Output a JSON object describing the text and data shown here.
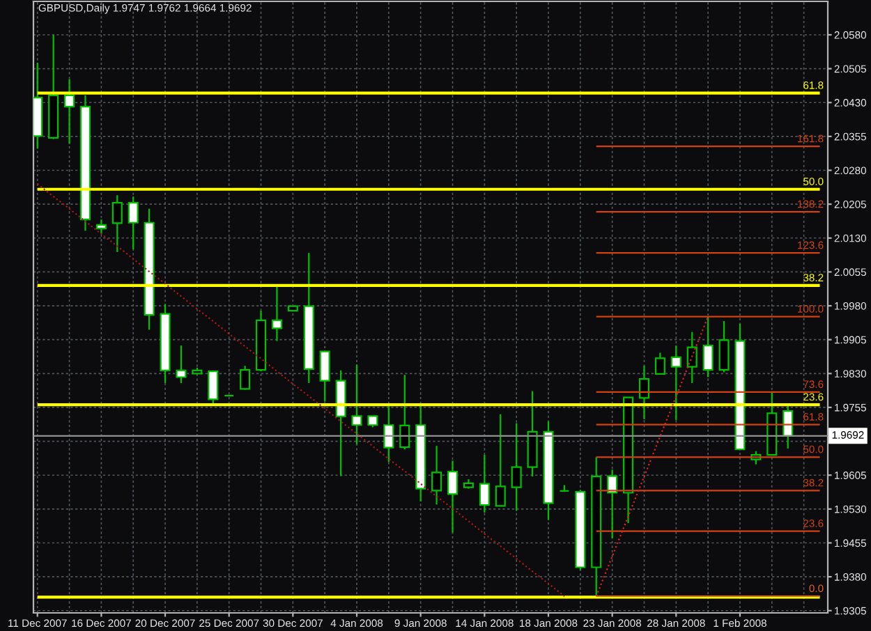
{
  "chart_data": {
    "type": "candlestick",
    "title": "GBPUSD,Daily 1.9747 1.9762 1.9664 1.9692",
    "categories": [
      "11 Dec 2007",
      null,
      null,
      null,
      "16 Dec 2007",
      null,
      null,
      null,
      "20 Dec 2007",
      null,
      null,
      null,
      "25 Dec 2007",
      null,
      null,
      null,
      "30 Dec 2007",
      null,
      null,
      null,
      "4 Jan 2008",
      null,
      null,
      null,
      "9 Jan 2008",
      null,
      null,
      null,
      "14 Jan 2008",
      null,
      null,
      null,
      "18 Jan 2008",
      null,
      null,
      null,
      "23 Jan 2008",
      null,
      null,
      null,
      "28 Jan 2008",
      null,
      null,
      null,
      "1 Feb 2008",
      null,
      null,
      null,
      null,
      null
    ],
    "ohlc": [
      [
        2.0441,
        2.0518,
        2.0328,
        2.0356
      ],
      [
        2.0352,
        2.058,
        2.0349,
        2.0446
      ],
      [
        2.0446,
        2.0482,
        2.0339,
        2.0421
      ],
      [
        2.0421,
        2.0446,
        2.0146,
        2.0171
      ],
      [
        2.0159,
        2.0171,
        2.014,
        2.0151
      ],
      [
        2.0163,
        2.0225,
        2.0099,
        2.0208
      ],
      [
        2.0208,
        2.0222,
        2.0105,
        2.0164
      ],
      [
        2.0164,
        2.0195,
        1.9927,
        1.996
      ],
      [
        1.9962,
        1.9984,
        1.9809,
        1.9837
      ],
      [
        1.9837,
        1.9892,
        1.9809,
        1.9822
      ],
      [
        1.983,
        1.9843,
        1.9828,
        1.9837
      ],
      [
        1.9835,
        1.9837,
        1.9758,
        1.9773
      ],
      [
        1.9781,
        1.9782,
        1.978,
        1.9781
      ],
      [
        1.9796,
        1.9847,
        1.9794,
        1.9838
      ],
      [
        1.9838,
        1.9969,
        1.9835,
        1.9948
      ],
      [
        1.9948,
        2.0022,
        1.9902,
        1.993
      ],
      [
        1.9969,
        1.998,
        1.9968,
        1.9979
      ],
      [
        1.9979,
        2.0097,
        1.9809,
        1.984
      ],
      [
        1.9879,
        1.988,
        1.9768,
        1.9814
      ],
      [
        1.9814,
        1.9837,
        1.9603,
        1.9735
      ],
      [
        1.9736,
        1.985,
        1.9673,
        1.9716
      ],
      [
        1.9736,
        1.9736,
        1.9711,
        1.9716
      ],
      [
        1.9716,
        1.9758,
        1.9634,
        1.9666
      ],
      [
        1.9667,
        1.9827,
        1.9662,
        1.9715
      ],
      [
        1.9716,
        1.9758,
        1.9547,
        1.9575
      ],
      [
        1.9571,
        1.967,
        1.954,
        1.9611
      ],
      [
        1.9613,
        1.9637,
        1.9478,
        1.9563
      ],
      [
        1.9578,
        1.9596,
        1.9575,
        1.9587
      ],
      [
        1.9586,
        1.965,
        1.9522,
        1.9539
      ],
      [
        1.9537,
        1.974,
        1.9537,
        1.958
      ],
      [
        1.9578,
        1.972,
        1.9526,
        1.9623
      ],
      [
        1.9623,
        1.9791,
        1.9602,
        1.9701
      ],
      [
        1.9701,
        1.9724,
        1.9506,
        1.9543
      ],
      [
        1.957,
        1.9583,
        1.9568,
        1.957
      ],
      [
        1.9568,
        1.9572,
        1.9395,
        1.9401
      ],
      [
        1.9401,
        1.9645,
        1.9337,
        1.9602
      ],
      [
        1.9603,
        1.9617,
        1.9465,
        1.9566
      ],
      [
        1.9566,
        1.9777,
        1.9499,
        1.9777
      ],
      [
        1.9776,
        1.9847,
        1.9729,
        1.9818
      ],
      [
        1.9829,
        1.9876,
        1.9829,
        1.9864
      ],
      [
        1.9866,
        1.9892,
        1.9727,
        1.9845
      ],
      [
        1.9845,
        1.9922,
        1.9809,
        1.9888
      ],
      [
        1.9892,
        1.9956,
        1.9822,
        1.9838
      ],
      [
        1.9838,
        1.9946,
        1.9833,
        1.9904
      ],
      [
        1.9902,
        1.994,
        1.9662,
        1.9662
      ],
      [
        1.964,
        1.9658,
        1.9629,
        1.965
      ],
      [
        1.965,
        1.9789,
        1.9649,
        1.9742
      ],
      [
        1.9747,
        1.9762,
        1.9664,
        1.9692
      ],
      null,
      null
    ],
    "color": "#00c000",
    "colors": [
      "#ffffff",
      "#000000",
      "#ffffff",
      "#ffffff",
      "#ffffff",
      "#000000",
      "#ffffff",
      "#ffffff",
      "#ffffff",
      "#ffffff",
      "#000000",
      "#ffffff",
      "#00c000",
      "#000000",
      "#000000",
      "#ffffff",
      "#000000",
      "#ffffff",
      "#ffffff",
      "#ffffff",
      "#ffffff",
      "#ffffff",
      "#ffffff",
      "#000000",
      "#ffffff",
      "#000000",
      "#ffffff",
      "#000000",
      "#ffffff",
      "#000000",
      "#000000",
      "#000000",
      "#ffffff",
      "#00c000",
      "#ffffff",
      "#000000",
      "#ffffff",
      "#000000",
      "#000000",
      "#000000",
      "#ffffff",
      "#000000",
      "#ffffff",
      "#000000",
      "#ffffff",
      "#000000",
      "#000000",
      "#ffffff",
      null,
      null
    ],
    "ylim": [
      1.93,
      2.0654
    ],
    "yticks": [
      {
        "value": 1.9305,
        "label": "1.9305"
      },
      {
        "value": 1.938,
        "label": "1.9380"
      },
      {
        "value": 1.9455,
        "label": "1.9455"
      },
      {
        "value": 1.953,
        "label": "1.9530"
      },
      {
        "value": 1.9605,
        "label": "1.9605"
      },
      {
        "value": 1.968,
        "label": null
      },
      {
        "value": 1.9755,
        "label": "1.9755"
      },
      {
        "value": 1.983,
        "label": "1.9830"
      },
      {
        "value": 1.9905,
        "label": "1.9905"
      },
      {
        "value": 1.998,
        "label": "1.9980"
      },
      {
        "value": 2.0055,
        "label": "2.0055"
      },
      {
        "value": 2.013,
        "label": "2.0130"
      },
      {
        "value": 2.0205,
        "label": "2.0205"
      },
      {
        "value": 2.028,
        "label": "2.0280"
      },
      {
        "value": 2.0355,
        "label": "2.0355"
      },
      {
        "value": 2.043,
        "label": "2.0430"
      },
      {
        "value": 2.0505,
        "label": "2.0505"
      },
      {
        "value": 2.058,
        "label": "2.0580"
      }
    ],
    "grid": true,
    "ref_lines": [
      {
        "axis": "y",
        "value": 1.9692,
        "label": "1.9692",
        "color": "#909090"
      }
    ],
    "series": [
      {
        "type": "line",
        "name": "61.8",
        "color": "#ffff00",
        "values": [
          2.0451,
          2.0451,
          2.0451,
          2.0451,
          2.0451,
          2.0451,
          2.0451,
          2.0451,
          2.0451,
          2.0451,
          2.0451,
          2.0451,
          2.0451,
          2.0451,
          2.0451,
          2.0451,
          2.0451,
          2.0451,
          2.0451,
          2.0451,
          2.0451,
          2.0451,
          2.0451,
          2.0451,
          2.0451,
          2.0451,
          2.0451,
          2.0451,
          2.0451,
          2.0451,
          2.0451,
          2.0451,
          2.0451,
          2.0451,
          2.0451,
          2.0451,
          2.0451,
          2.0451,
          2.0451,
          2.0451,
          2.0451,
          2.0451,
          2.0451,
          2.0451,
          2.0451,
          2.0451,
          2.0451,
          2.0451,
          2.0451,
          2.0451
        ]
      },
      {
        "type": "line",
        "name": "50.0",
        "color": "#ffff00",
        "values": [
          2.0238,
          2.0238,
          2.0238,
          2.0238,
          2.0238,
          2.0238,
          2.0238,
          2.0238,
          2.0238,
          2.0238,
          2.0238,
          2.0238,
          2.0238,
          2.0238,
          2.0238,
          2.0238,
          2.0238,
          2.0238,
          2.0238,
          2.0238,
          2.0238,
          2.0238,
          2.0238,
          2.0238,
          2.0238,
          2.0238,
          2.0238,
          2.0238,
          2.0238,
          2.0238,
          2.0238,
          2.0238,
          2.0238,
          2.0238,
          2.0238,
          2.0238,
          2.0238,
          2.0238,
          2.0238,
          2.0238,
          2.0238,
          2.0238,
          2.0238,
          2.0238,
          2.0238,
          2.0238,
          2.0238,
          2.0238,
          2.0238,
          2.0238
        ]
      },
      {
        "type": "line",
        "name": "38.2",
        "color": "#ffff00",
        "values": [
          2.0025,
          2.0025,
          2.0025,
          2.0025,
          2.0025,
          2.0025,
          2.0025,
          2.0025,
          2.0025,
          2.0025,
          2.0025,
          2.0025,
          2.0025,
          2.0025,
          2.0025,
          2.0025,
          2.0025,
          2.0025,
          2.0025,
          2.0025,
          2.0025,
          2.0025,
          2.0025,
          2.0025,
          2.0025,
          2.0025,
          2.0025,
          2.0025,
          2.0025,
          2.0025,
          2.0025,
          2.0025,
          2.0025,
          2.0025,
          2.0025,
          2.0025,
          2.0025,
          2.0025,
          2.0025,
          2.0025,
          2.0025,
          2.0025,
          2.0025,
          2.0025,
          2.0025,
          2.0025,
          2.0025,
          2.0025,
          2.0025,
          2.0025
        ]
      },
      {
        "type": "line",
        "name": "23.6",
        "color": "#ffff00",
        "values": [
          1.9761,
          1.9761,
          1.9761,
          1.9761,
          1.9761,
          1.9761,
          1.9761,
          1.9761,
          1.9761,
          1.9761,
          1.9761,
          1.9761,
          1.9761,
          1.9761,
          1.9761,
          1.9761,
          1.9761,
          1.9761,
          1.9761,
          1.9761,
          1.9761,
          1.9761,
          1.9761,
          1.9761,
          1.9761,
          1.9761,
          1.9761,
          1.9761,
          1.9761,
          1.9761,
          1.9761,
          1.9761,
          1.9761,
          1.9761,
          1.9761,
          1.9761,
          1.9761,
          1.9761,
          1.9761,
          1.9761,
          1.9761,
          1.9761,
          1.9761,
          1.9761,
          1.9761,
          1.9761,
          1.9761,
          1.9761,
          1.9761,
          1.9761
        ]
      },
      {
        "type": "line",
        "color": "#ffff00",
        "values": [
          1.9335,
          1.9335,
          1.9335,
          1.9335,
          1.9335,
          1.9335,
          1.9335,
          1.9335,
          1.9335,
          1.9335,
          1.9335,
          1.9335,
          1.9335,
          1.9335,
          1.9335,
          1.9335,
          1.9335,
          1.9335,
          1.9335,
          1.9335,
          1.9335,
          1.9335,
          1.9335,
          1.9335,
          1.9335,
          1.9335,
          1.9335,
          1.9335,
          1.9335,
          1.9335,
          1.9335,
          1.9335,
          1.9335,
          1.9335,
          1.9335,
          1.9335,
          1.9335,
          1.9335,
          1.9335,
          1.9335,
          1.9335,
          1.9335,
          1.9335,
          1.9335,
          1.9335,
          1.9335,
          1.9335,
          1.9335,
          1.9335,
          1.9335
        ]
      },
      {
        "type": "line",
        "color": "#a81818",
        "line_style": "dotted",
        "values": [
          2.025,
          2.0222,
          2.0195,
          2.0167,
          2.0139,
          2.0112,
          2.0084,
          2.0056,
          2.0029,
          2.0001,
          1.9973,
          1.9946,
          1.9918,
          1.989,
          1.9863,
          1.9835,
          1.9807,
          1.978,
          1.9752,
          1.9724,
          1.9697,
          1.9669,
          1.9641,
          1.9614,
          1.9586,
          1.9558,
          1.9531,
          1.9503,
          1.9475,
          1.9448,
          1.942,
          1.9392,
          1.9365,
          1.9337,
          null,
          null,
          null,
          null,
          null,
          null,
          null,
          null,
          null,
          null,
          null,
          null,
          null,
          null,
          null,
          null
        ]
      },
      {
        "type": "line",
        "name": "161.8",
        "color": "#d2410f",
        "values": [
          null,
          null,
          null,
          null,
          null,
          null,
          null,
          null,
          null,
          null,
          null,
          null,
          null,
          null,
          null,
          null,
          null,
          null,
          null,
          null,
          null,
          null,
          null,
          null,
          null,
          null,
          null,
          null,
          null,
          null,
          null,
          null,
          null,
          null,
          null,
          2.0333,
          2.0333,
          2.0333,
          2.0333,
          2.0333,
          2.0333,
          2.0333,
          2.0333,
          2.0333,
          2.0333,
          2.0333,
          2.0333,
          2.0333,
          2.0333,
          2.0333
        ]
      },
      {
        "type": "line",
        "name": "138.2",
        "color": "#d2410f",
        "values": [
          null,
          null,
          null,
          null,
          null,
          null,
          null,
          null,
          null,
          null,
          null,
          null,
          null,
          null,
          null,
          null,
          null,
          null,
          null,
          null,
          null,
          null,
          null,
          null,
          null,
          null,
          null,
          null,
          null,
          null,
          null,
          null,
          null,
          null,
          null,
          2.0188,
          2.0188,
          2.0188,
          2.0188,
          2.0188,
          2.0188,
          2.0188,
          2.0188,
          2.0188,
          2.0188,
          2.0188,
          2.0188,
          2.0188,
          2.0188,
          2.0188
        ]
      },
      {
        "type": "line",
        "name": "123.6",
        "color": "#d2410f",
        "values": [
          null,
          null,
          null,
          null,
          null,
          null,
          null,
          null,
          null,
          null,
          null,
          null,
          null,
          null,
          null,
          null,
          null,
          null,
          null,
          null,
          null,
          null,
          null,
          null,
          null,
          null,
          null,
          null,
          null,
          null,
          null,
          null,
          null,
          null,
          null,
          2.0097,
          2.0097,
          2.0097,
          2.0097,
          2.0097,
          2.0097,
          2.0097,
          2.0097,
          2.0097,
          2.0097,
          2.0097,
          2.0097,
          2.0097,
          2.0097,
          2.0097
        ]
      },
      {
        "type": "line",
        "name": "100.0",
        "color": "#d2410f",
        "values": [
          null,
          null,
          null,
          null,
          null,
          null,
          null,
          null,
          null,
          null,
          null,
          null,
          null,
          null,
          null,
          null,
          null,
          null,
          null,
          null,
          null,
          null,
          null,
          null,
          null,
          null,
          null,
          null,
          null,
          null,
          null,
          null,
          null,
          null,
          null,
          1.9956,
          1.9956,
          1.9956,
          1.9956,
          1.9956,
          1.9956,
          1.9956,
          1.9956,
          1.9956,
          1.9956,
          1.9956,
          1.9956,
          1.9956,
          1.9956,
          1.9956
        ]
      },
      {
        "type": "line",
        "name": "73.6",
        "color": "#d2410f",
        "values": [
          null,
          null,
          null,
          null,
          null,
          null,
          null,
          null,
          null,
          null,
          null,
          null,
          null,
          null,
          null,
          null,
          null,
          null,
          null,
          null,
          null,
          null,
          null,
          null,
          null,
          null,
          null,
          null,
          null,
          null,
          null,
          null,
          null,
          null,
          null,
          1.9789,
          1.9789,
          1.9789,
          1.9789,
          1.9789,
          1.9789,
          1.9789,
          1.9789,
          1.9789,
          1.9789,
          1.9789,
          1.9789,
          1.9789,
          1.9789,
          1.9789
        ]
      },
      {
        "type": "line",
        "name": "61.8",
        "color": "#d2410f",
        "values": [
          null,
          null,
          null,
          null,
          null,
          null,
          null,
          null,
          null,
          null,
          null,
          null,
          null,
          null,
          null,
          null,
          null,
          null,
          null,
          null,
          null,
          null,
          null,
          null,
          null,
          null,
          null,
          null,
          null,
          null,
          null,
          null,
          null,
          null,
          null,
          1.9717,
          1.9717,
          1.9717,
          1.9717,
          1.9717,
          1.9717,
          1.9717,
          1.9717,
          1.9717,
          1.9717,
          1.9717,
          1.9717,
          1.9717,
          1.9717,
          1.9717
        ]
      },
      {
        "type": "line",
        "name": "50.0",
        "color": "#d2410f",
        "values": [
          null,
          null,
          null,
          null,
          null,
          null,
          null,
          null,
          null,
          null,
          null,
          null,
          null,
          null,
          null,
          null,
          null,
          null,
          null,
          null,
          null,
          null,
          null,
          null,
          null,
          null,
          null,
          null,
          null,
          null,
          null,
          null,
          null,
          null,
          null,
          1.9645,
          1.9645,
          1.9645,
          1.9645,
          1.9645,
          1.9645,
          1.9645,
          1.9645,
          1.9645,
          1.9645,
          1.9645,
          1.9645,
          1.9645,
          1.9645,
          1.9645
        ]
      },
      {
        "type": "line",
        "name": "38.2",
        "color": "#d2410f",
        "values": [
          null,
          null,
          null,
          null,
          null,
          null,
          null,
          null,
          null,
          null,
          null,
          null,
          null,
          null,
          null,
          null,
          null,
          null,
          null,
          null,
          null,
          null,
          null,
          null,
          null,
          null,
          null,
          null,
          null,
          null,
          null,
          null,
          null,
          null,
          null,
          1.9571,
          1.9571,
          1.9571,
          1.9571,
          1.9571,
          1.9571,
          1.9571,
          1.9571,
          1.9571,
          1.9571,
          1.9571,
          1.9571,
          1.9571,
          1.9571,
          1.9571
        ]
      },
      {
        "type": "line",
        "name": "23.6",
        "color": "#d2410f",
        "values": [
          null,
          null,
          null,
          null,
          null,
          null,
          null,
          null,
          null,
          null,
          null,
          null,
          null,
          null,
          null,
          null,
          null,
          null,
          null,
          null,
          null,
          null,
          null,
          null,
          null,
          null,
          null,
          null,
          null,
          null,
          null,
          null,
          null,
          null,
          null,
          1.9481,
          1.9481,
          1.9481,
          1.9481,
          1.9481,
          1.9481,
          1.9481,
          1.9481,
          1.9481,
          1.9481,
          1.9481,
          1.9481,
          1.9481,
          1.9481,
          1.9481
        ]
      },
      {
        "type": "line",
        "name": "0.0",
        "color": "#e0641e",
        "values": [
          null,
          null,
          null,
          null,
          null,
          null,
          null,
          null,
          null,
          null,
          null,
          null,
          null,
          null,
          null,
          null,
          null,
          null,
          null,
          null,
          null,
          null,
          null,
          null,
          null,
          null,
          null,
          null,
          null,
          null,
          null,
          null,
          null,
          null,
          null,
          1.9337,
          1.9337,
          1.9337,
          1.9337,
          1.9337,
          1.9337,
          1.9337,
          1.9337,
          1.9337,
          1.9337,
          1.9337,
          1.9337,
          1.9337,
          1.9337,
          1.9337
        ]
      },
      {
        "type": "line",
        "color": "#e02020",
        "line_style": "dotted",
        "values": [
          null,
          null,
          null,
          null,
          null,
          null,
          null,
          null,
          null,
          null,
          null,
          null,
          null,
          null,
          null,
          null,
          null,
          null,
          null,
          null,
          null,
          null,
          null,
          null,
          null,
          null,
          null,
          null,
          null,
          null,
          null,
          null,
          null,
          null,
          null,
          1.9337,
          1.9425,
          1.9514,
          1.9602,
          1.9691,
          1.9779,
          1.9868,
          1.9956,
          null,
          null,
          null,
          null,
          null,
          null,
          null
        ]
      }
    ]
  }
}
